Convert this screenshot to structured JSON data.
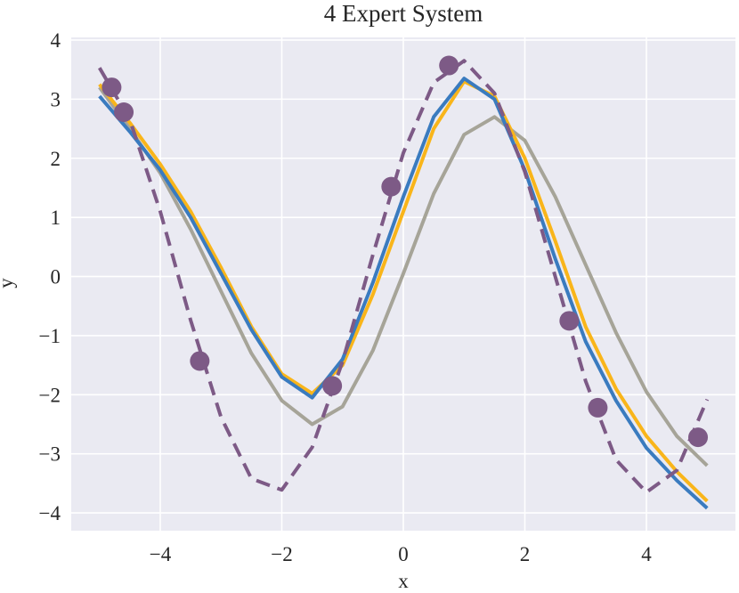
{
  "chart_data": {
    "type": "line",
    "title": "4 Expert System",
    "xlabel": "x",
    "ylabel": "y",
    "x": [
      -5,
      -4.5,
      -4,
      -3.5,
      -3,
      -2.5,
      -2,
      -1.5,
      -1,
      -0.5,
      0,
      0.5,
      1,
      1.5,
      2,
      2.5,
      3,
      3.5,
      4,
      4.5,
      5
    ],
    "series": [
      {
        "type": "line",
        "color": "#a6a498",
        "values": [
          3.2,
          2.5,
          1.75,
          0.8,
          -0.25,
          -1.3,
          -2.1,
          -2.5,
          -2.2,
          -1.25,
          0.05,
          1.4,
          2.4,
          2.7,
          2.3,
          1.35,
          0.2,
          -0.95,
          -1.95,
          -2.7,
          -3.2
        ]
      },
      {
        "type": "line",
        "color": "#f9b51a",
        "values": [
          3.25,
          2.6,
          1.9,
          1.1,
          0.15,
          -0.85,
          -1.65,
          -1.98,
          -1.5,
          -0.3,
          1.1,
          2.5,
          3.3,
          3.05,
          2.0,
          0.6,
          -0.85,
          -1.9,
          -2.7,
          -3.3,
          -3.8
        ]
      },
      {
        "type": "line",
        "color": "#3a7bbf",
        "values": [
          3.05,
          2.45,
          1.8,
          1.0,
          0.05,
          -0.9,
          -1.7,
          -2.05,
          -1.4,
          -0.1,
          1.35,
          2.7,
          3.35,
          3.0,
          1.8,
          0.3,
          -1.1,
          -2.1,
          -2.9,
          -3.45,
          -3.92
        ]
      },
      {
        "type": "line",
        "dashed": true,
        "color": "#7d5a86",
        "values": [
          3.53,
          2.65,
          1.1,
          -0.74,
          -2.38,
          -3.42,
          -3.61,
          -2.89,
          -1.44,
          0.37,
          2.09,
          3.28,
          3.65,
          3.1,
          1.77,
          0,
          -1.77,
          -3.1,
          -3.65,
          -3.28,
          -2.08
        ]
      },
      {
        "type": "scatter",
        "color": "#7d5a86",
        "x": [
          -4.8,
          -4.6,
          -3.35,
          -1.17,
          -0.2,
          0.75,
          2.73,
          3.2,
          4.85
        ],
        "values": [
          3.2,
          2.78,
          -1.43,
          -1.85,
          1.52,
          3.57,
          -0.75,
          -2.22,
          -2.72
        ]
      }
    ],
    "xlim": [
      -5.465,
      5.465
    ],
    "ylim": [
      -4.3,
      4.045
    ],
    "xticks": [
      {
        "value": -4,
        "label": "−4"
      },
      {
        "value": -2,
        "label": "−2"
      },
      0,
      2,
      4
    ],
    "yticks": [
      {
        "value": -4,
        "label": "−4"
      },
      {
        "value": -3,
        "label": "−3"
      },
      {
        "value": -2,
        "label": "−2"
      },
      {
        "value": -1,
        "label": "−1"
      },
      0,
      1,
      2,
      3,
      4
    ],
    "grid": true,
    "background": "#eaeaf2"
  }
}
